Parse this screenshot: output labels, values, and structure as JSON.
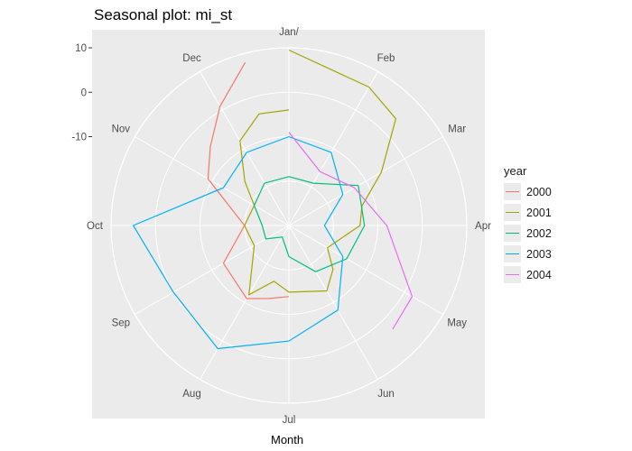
{
  "title": "Seasonal plot: mi_st",
  "chart_data": {
    "type": "line",
    "coord": "polar",
    "title": "Seasonal plot: mi_st",
    "xlabel": "Month",
    "ylabel": "",
    "months": [
      "Jan/",
      "Feb",
      "Mar",
      "Apr",
      "May",
      "Jun",
      "Jul",
      "Aug",
      "Sep",
      "Oct",
      "Nov",
      "Dec"
    ],
    "r_ticks": [
      10,
      0,
      -10
    ],
    "r_range": [
      -30,
      10
    ],
    "legend": {
      "title": "year",
      "position": "right"
    },
    "series": [
      {
        "name": "2000",
        "color": "#F8766D",
        "x": [
          7,
          7.5,
          8,
          9,
          10,
          11,
          11.5,
          12,
          12.5
        ],
        "values": [
          -14,
          -13,
          -11,
          -13,
          -20,
          -9,
          -5,
          1,
          8
        ]
      },
      {
        "name": "2001",
        "color": "#A3A500",
        "x": [
          1,
          2,
          2.5,
          3,
          3.5,
          4,
          5,
          5.5,
          6,
          7,
          7.5,
          8,
          9,
          10,
          11,
          11.5,
          12,
          12.5,
          13
        ],
        "values": [
          9.5,
          6,
          4,
          -6,
          -13,
          -14,
          -20,
          -16,
          -13,
          -15,
          -17,
          -12,
          -21,
          -20,
          -21,
          -16,
          -8,
          -4,
          -4
        ]
      },
      {
        "name": "2002",
        "color": "#00BF7D",
        "x": [
          1,
          2,
          3,
          4,
          5,
          6,
          7,
          8,
          9,
          10,
          11,
          12,
          13
        ],
        "values": [
          -19,
          -19,
          -12,
          -13,
          -15,
          -18,
          -23,
          -27,
          -24,
          -24,
          -21,
          -19,
          -19
        ]
      },
      {
        "name": "2003",
        "color": "#00B0F6",
        "x": [
          1,
          2,
          3,
          4,
          5,
          6,
          7,
          8,
          9,
          10,
          11,
          12,
          13
        ],
        "values": [
          -10,
          -11,
          -16,
          -22,
          -16,
          -8,
          -4,
          2,
          0,
          5,
          -13,
          -11,
          -10
        ]
      },
      {
        "name": "2004",
        "color": "#E76BF3",
        "x": [
          1,
          2,
          3,
          4,
          5,
          5.5
        ],
        "values": [
          -9,
          -16,
          -13,
          -8,
          2,
          3
        ]
      }
    ]
  }
}
